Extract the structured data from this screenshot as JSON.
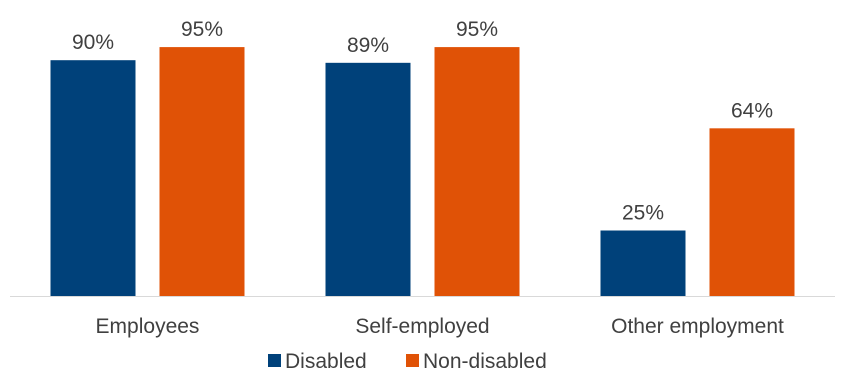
{
  "chart_data": {
    "type": "bar",
    "categories": [
      "Employees",
      "Self-employed",
      "Other employment"
    ],
    "series": [
      {
        "name": "Disabled",
        "values": [
          90,
          89,
          25
        ],
        "labels": [
          "90%",
          "89%",
          "25%"
        ],
        "color": "#00417a"
      },
      {
        "name": "Non-disabled",
        "values": [
          95,
          95,
          64
        ],
        "labels": [
          "95%",
          "95%",
          "64%"
        ],
        "color": "#e05206"
      }
    ],
    "ylim": [
      0,
      100
    ],
    "grid": false,
    "legend_position": "bottom",
    "axis_color": "#d9d9d9"
  }
}
